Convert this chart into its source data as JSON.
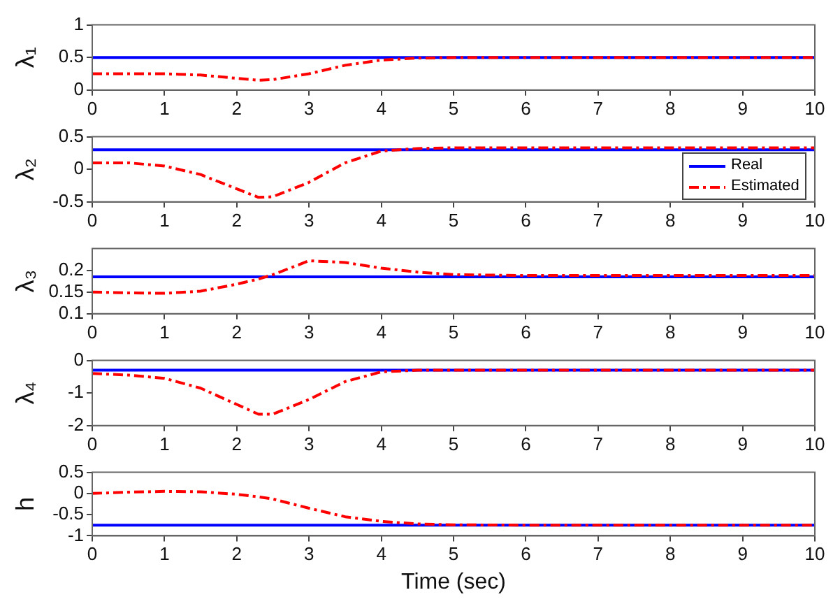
{
  "chart_data": [
    {
      "type": "line",
      "ylabel": "λ₁",
      "xlim": [
        0,
        10
      ],
      "xticks": [
        0,
        1,
        2,
        3,
        4,
        5,
        6,
        7,
        8,
        9,
        10
      ],
      "ylim": [
        0,
        1
      ],
      "yticks": [
        0,
        0.5,
        1
      ],
      "grid": false,
      "marker": "none",
      "series": [
        {
          "color": "#0000ff",
          "line_style": "solid",
          "x": [
            0,
            10
          ],
          "values": [
            0.5,
            0.5
          ]
        },
        {
          "color": "#ff0000",
          "line_style": "dashed",
          "x": [
            0,
            0.5,
            1,
            1.5,
            2,
            2.3,
            2.5,
            3,
            3.5,
            4,
            4.5,
            5,
            6,
            7,
            8,
            9,
            10
          ],
          "values": [
            0.25,
            0.25,
            0.25,
            0.23,
            0.18,
            0.15,
            0.16,
            0.25,
            0.38,
            0.46,
            0.49,
            0.5,
            0.5,
            0.5,
            0.5,
            0.5,
            0.5
          ]
        }
      ]
    },
    {
      "type": "line",
      "ylabel": "λ₂",
      "xlim": [
        0,
        10
      ],
      "xticks": [
        0,
        1,
        2,
        3,
        4,
        5,
        6,
        7,
        8,
        9,
        10
      ],
      "ylim": [
        -0.5,
        0.5
      ],
      "yticks": [
        -0.5,
        0,
        0.5
      ],
      "grid": false,
      "marker": "none",
      "legend": "bottom right",
      "series": [
        {
          "name": "Real",
          "color": "#0000ff",
          "line_style": "solid",
          "x": [
            0,
            10
          ],
          "values": [
            0.3,
            0.3
          ]
        },
        {
          "name": "Estimated",
          "color": "#ff0000",
          "line_style": "dashed",
          "x": [
            0,
            0.5,
            1,
            1.5,
            2,
            2.3,
            2.5,
            3,
            3.5,
            4,
            4.5,
            5,
            6,
            7,
            8,
            9,
            10
          ],
          "values": [
            0.1,
            0.1,
            0.05,
            -0.08,
            -0.3,
            -0.43,
            -0.42,
            -0.2,
            0.1,
            0.28,
            0.32,
            0.33,
            0.33,
            0.33,
            0.33,
            0.33,
            0.33
          ]
        }
      ]
    },
    {
      "type": "line",
      "ylabel": "λ₃",
      "xlim": [
        0,
        10
      ],
      "xticks": [
        0,
        1,
        2,
        3,
        4,
        5,
        6,
        7,
        8,
        9,
        10
      ],
      "ylim": [
        0.1,
        0.25
      ],
      "yticks": [
        0.1,
        0.15,
        0.2
      ],
      "grid": false,
      "marker": "none",
      "series": [
        {
          "color": "#0000ff",
          "line_style": "solid",
          "x": [
            0,
            10
          ],
          "values": [
            0.185,
            0.185
          ]
        },
        {
          "color": "#ff0000",
          "line_style": "dashed",
          "x": [
            0,
            0.5,
            1,
            1.5,
            2,
            2.3,
            2.5,
            3,
            3.5,
            4,
            4.5,
            5,
            6,
            7,
            8,
            9,
            10
          ],
          "values": [
            0.15,
            0.148,
            0.147,
            0.152,
            0.168,
            0.18,
            0.19,
            0.222,
            0.218,
            0.205,
            0.196,
            0.19,
            0.188,
            0.188,
            0.188,
            0.188,
            0.188
          ]
        }
      ]
    },
    {
      "type": "line",
      "ylabel": "λ₄",
      "xlim": [
        0,
        10
      ],
      "xticks": [
        0,
        1,
        2,
        3,
        4,
        5,
        6,
        7,
        8,
        9,
        10
      ],
      "ylim": [
        -2,
        0
      ],
      "yticks": [
        -2,
        -1,
        0
      ],
      "grid": false,
      "marker": "none",
      "series": [
        {
          "color": "#0000ff",
          "line_style": "solid",
          "x": [
            0,
            10
          ],
          "values": [
            -0.3,
            -0.3
          ]
        },
        {
          "color": "#ff0000",
          "line_style": "dashed",
          "x": [
            0,
            0.5,
            1,
            1.5,
            2,
            2.3,
            2.5,
            3,
            3.5,
            4,
            4.5,
            5,
            6,
            7,
            8,
            9,
            10
          ],
          "values": [
            -0.4,
            -0.45,
            -0.55,
            -0.85,
            -1.35,
            -1.65,
            -1.65,
            -1.2,
            -0.65,
            -0.35,
            -0.3,
            -0.3,
            -0.3,
            -0.3,
            -0.3,
            -0.3,
            -0.3
          ]
        }
      ]
    },
    {
      "type": "line",
      "ylabel": "h",
      "xlabel": "Time (sec)",
      "xlim": [
        0,
        10
      ],
      "xticks": [
        0,
        1,
        2,
        3,
        4,
        5,
        6,
        7,
        8,
        9,
        10
      ],
      "ylim": [
        -1,
        0.5
      ],
      "yticks": [
        -1,
        -0.5,
        0,
        0.5
      ],
      "grid": false,
      "marker": "none",
      "series": [
        {
          "color": "#0000ff",
          "line_style": "solid",
          "x": [
            0,
            10
          ],
          "values": [
            -0.75,
            -0.75
          ]
        },
        {
          "color": "#ff0000",
          "line_style": "dashed",
          "x": [
            0,
            0.5,
            1,
            1.5,
            2,
            2.3,
            2.5,
            3,
            3.5,
            4,
            4.5,
            5,
            6,
            7,
            8,
            9,
            10
          ],
          "values": [
            0,
            0.03,
            0.05,
            0.04,
            -0.02,
            -0.08,
            -0.13,
            -0.35,
            -0.55,
            -0.66,
            -0.72,
            -0.74,
            -0.75,
            -0.75,
            -0.75,
            -0.75,
            -0.75
          ]
        }
      ]
    }
  ]
}
